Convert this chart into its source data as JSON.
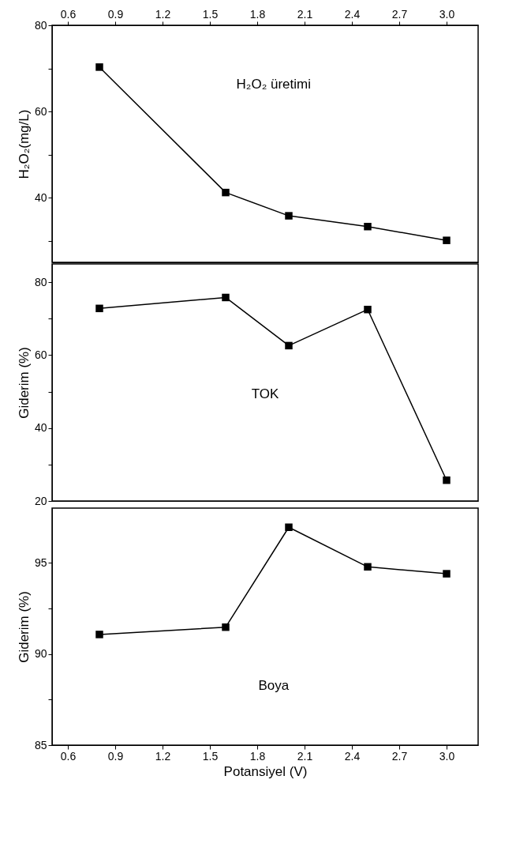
{
  "chart_data": [
    {
      "type": "line",
      "ylabel": "H₂O₂(mg/L)",
      "annotations": [
        "H₂O₂ üretimi"
      ],
      "x": [
        0.8,
        1.6,
        2.0,
        2.5,
        3.0
      ],
      "series": [
        {
          "color": "#000000",
          "values": [
            70.3,
            41.2,
            35.8,
            33.3,
            30.1
          ]
        }
      ],
      "xlim": [
        0.5,
        3.2
      ],
      "ylim": [
        25,
        80
      ],
      "yticks": [
        {
          "value": 30,
          "label": null
        },
        40,
        {
          "value": 50,
          "label": null
        },
        60,
        {
          "value": 70,
          "label": null
        },
        80
      ],
      "x2lim": [
        0.5,
        3.2
      ],
      "x2ticks": [
        0.6,
        0.9,
        1.2,
        1.5,
        1.8,
        2.1,
        2.4,
        2.7,
        {
          "value": 3.0,
          "label": "3.0"
        }
      ],
      "tick_labels": "y",
      "marker": "square",
      "line_style": "solid",
      "grid": false
    },
    {
      "type": "line",
      "ylabel": "Giderim (%)",
      "annotations": [
        "TOK"
      ],
      "x": [
        0.8,
        1.6,
        2.0,
        2.5,
        3.0
      ],
      "series": [
        {
          "color": "#000000",
          "values": [
            72.8,
            75.8,
            62.6,
            72.5,
            25.7
          ]
        }
      ],
      "xlim": [
        0.5,
        3.2
      ],
      "ylim": [
        20,
        85
      ],
      "yticks": [
        20,
        {
          "value": 30,
          "label": null
        },
        40,
        {
          "value": 50,
          "label": null
        },
        60,
        {
          "value": 70,
          "label": null
        },
        80
      ],
      "tick_labels": "y",
      "marker": "square",
      "line_style": "solid",
      "grid": false
    },
    {
      "type": "line",
      "xlabel": "Potansiyel (V)",
      "ylabel": "Giderim (%)",
      "annotations": [
        "Boya"
      ],
      "x": [
        0.8,
        1.6,
        2.0,
        2.5,
        3.0
      ],
      "series": [
        {
          "color": "#000000",
          "values": [
            91.07,
            91.47,
            96.95,
            94.78,
            94.4
          ]
        }
      ],
      "xlim": [
        0.5,
        3.2
      ],
      "ylim": [
        85,
        98
      ],
      "yticks": [
        85,
        {
          "value": 87.5,
          "label": null
        },
        90,
        {
          "value": 92.5,
          "label": null
        },
        95
      ],
      "xticks": [
        0.6,
        0.9,
        1.2,
        1.5,
        1.8,
        2.1,
        2.4,
        2.7,
        {
          "value": 3.0,
          "label": "3.0"
        }
      ],
      "marker": "square",
      "line_style": "solid",
      "grid": false
    }
  ]
}
